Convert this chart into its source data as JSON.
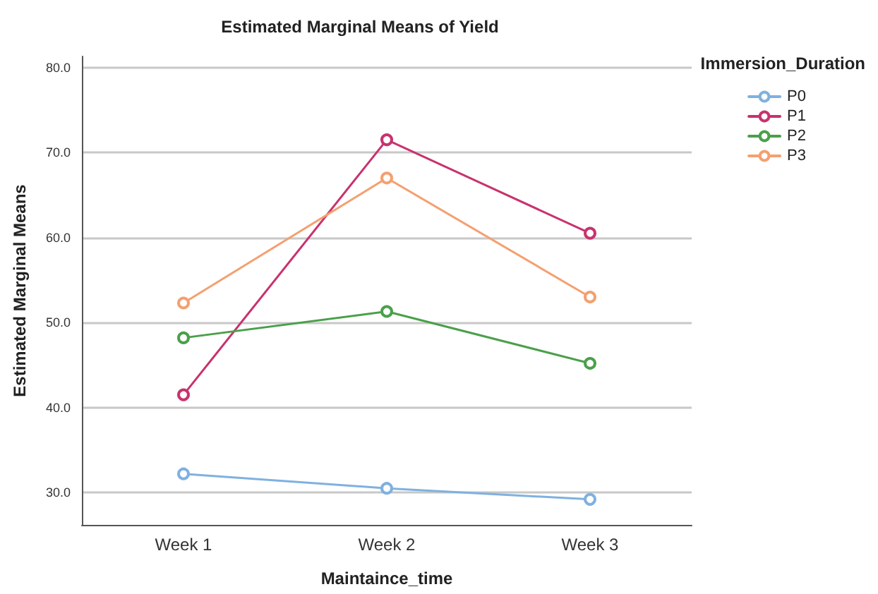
{
  "chart_data": {
    "type": "line",
    "title": "Estimated Marginal Means of Yield",
    "xlabel": "Maintaince_time",
    "ylabel": "Estimated Marginal Means",
    "legend_title": "Immersion_Duration",
    "categories": [
      "Week 1",
      "Week 2",
      "Week 3"
    ],
    "series": [
      {
        "name": "P0",
        "color": "#7fb1e0",
        "values": [
          32.2,
          30.5,
          29.2
        ]
      },
      {
        "name": "P1",
        "color": "#c8326e",
        "values": [
          41.5,
          71.5,
          60.5
        ]
      },
      {
        "name": "P2",
        "color": "#4aa04a",
        "values": [
          48.2,
          51.3,
          45.2
        ]
      },
      {
        "name": "P3",
        "color": "#f4a070",
        "values": [
          52.3,
          67.0,
          53.0
        ]
      }
    ],
    "ylim": [
      26.2,
      81.3
    ],
    "yticks": [
      {
        "value": 30,
        "label": "30.0"
      },
      {
        "value": 40,
        "label": "40.0"
      },
      {
        "value": 50,
        "label": "50.0"
      },
      {
        "value": 60,
        "label": "60.0"
      },
      {
        "value": 70,
        "label": "70.0"
      },
      {
        "value": 80,
        "label": "80.0"
      }
    ],
    "grid": "y",
    "legend": "top right",
    "marker": "circle",
    "line_style": "solid"
  }
}
